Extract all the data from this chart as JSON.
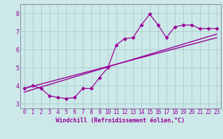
{
  "xlabel": "Windchill (Refroidissement éolien,°C)",
  "bg_color": "#cce8e8",
  "line_color": "#990099",
  "spine_color": "#8888aa",
  "xlim": [
    -0.5,
    23.5
  ],
  "ylim": [
    2.75,
    8.5
  ],
  "xticks": [
    0,
    1,
    2,
    3,
    4,
    5,
    6,
    7,
    8,
    9,
    10,
    11,
    12,
    13,
    14,
    15,
    16,
    17,
    18,
    19,
    20,
    21,
    22,
    23
  ],
  "yticks": [
    3,
    4,
    5,
    6,
    7,
    8
  ],
  "grid_color": "#aacccc",
  "curve_x": [
    0,
    1,
    2,
    3,
    4,
    5,
    6,
    7,
    8,
    9,
    10,
    11,
    12,
    13,
    14,
    15,
    16,
    17,
    18,
    19,
    20,
    21,
    22,
    23
  ],
  "curve_y": [
    3.85,
    4.0,
    3.85,
    3.45,
    3.35,
    3.3,
    3.35,
    3.85,
    3.85,
    4.45,
    5.0,
    6.25,
    6.6,
    6.65,
    7.35,
    7.95,
    7.35,
    6.65,
    7.25,
    7.35,
    7.35,
    7.15,
    7.15,
    7.15
  ],
  "line1_x": [
    0,
    23
  ],
  "line1_y": [
    3.85,
    6.65
  ],
  "line2_x": [
    0,
    23
  ],
  "line2_y": [
    3.65,
    6.85
  ],
  "tick_fontsize": 5.5,
  "xlabel_fontsize": 6.0
}
